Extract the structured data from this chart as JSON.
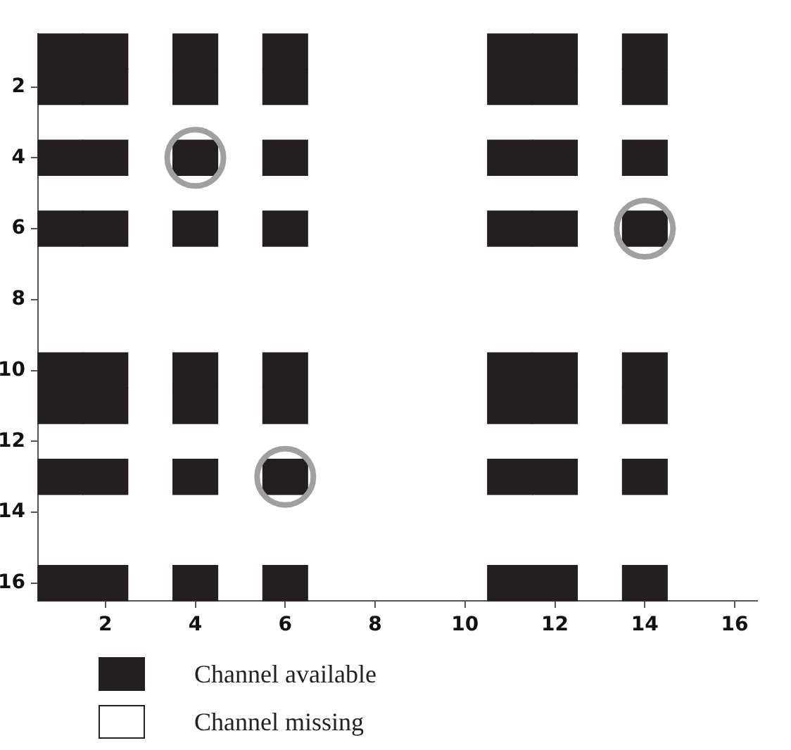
{
  "chart_data": {
    "type": "scatter",
    "xlim": [
      0.5,
      16.5
    ],
    "xticks": [
      2,
      4,
      6,
      8,
      10,
      12,
      14,
      16
    ],
    "ylim": [
      16.5,
      0.5
    ],
    "yticks": [
      2,
      4,
      6,
      8,
      10,
      12,
      14,
      16
    ],
    "series": [
      {
        "name": "Channel available",
        "color": "#231f20",
        "marker": "square",
        "x": [
          1,
          2,
          4,
          6,
          11,
          12,
          14,
          1,
          2,
          4,
          6,
          11,
          12,
          14,
          1,
          2,
          4,
          6,
          11,
          12,
          14,
          1,
          2,
          4,
          6,
          11,
          12,
          14,
          1,
          2,
          4,
          6,
          11,
          12,
          14,
          1,
          2,
          4,
          6,
          11,
          12,
          14,
          1,
          2,
          4,
          6,
          11,
          12,
          14,
          1,
          2,
          4,
          6,
          11,
          12,
          14
        ],
        "values": [
          1,
          1,
          1,
          1,
          1,
          1,
          1,
          2,
          2,
          2,
          2,
          2,
          2,
          2,
          4,
          4,
          4,
          4,
          4,
          4,
          4,
          6,
          6,
          6,
          6,
          6,
          6,
          6,
          10,
          10,
          10,
          10,
          10,
          10,
          10,
          11,
          11,
          11,
          11,
          11,
          11,
          11,
          13,
          13,
          13,
          13,
          13,
          13,
          13,
          16,
          16,
          16,
          16,
          16,
          16,
          16
        ]
      },
      {
        "name": "Channel missing",
        "color": "#ffffff",
        "marker": "square"
      },
      {
        "color": "#a0a0a0",
        "marker": "circle",
        "x": [
          4,
          14,
          6
        ],
        "values": [
          4,
          6,
          13
        ]
      }
    ],
    "legend": "bottom",
    "grid": false
  }
}
